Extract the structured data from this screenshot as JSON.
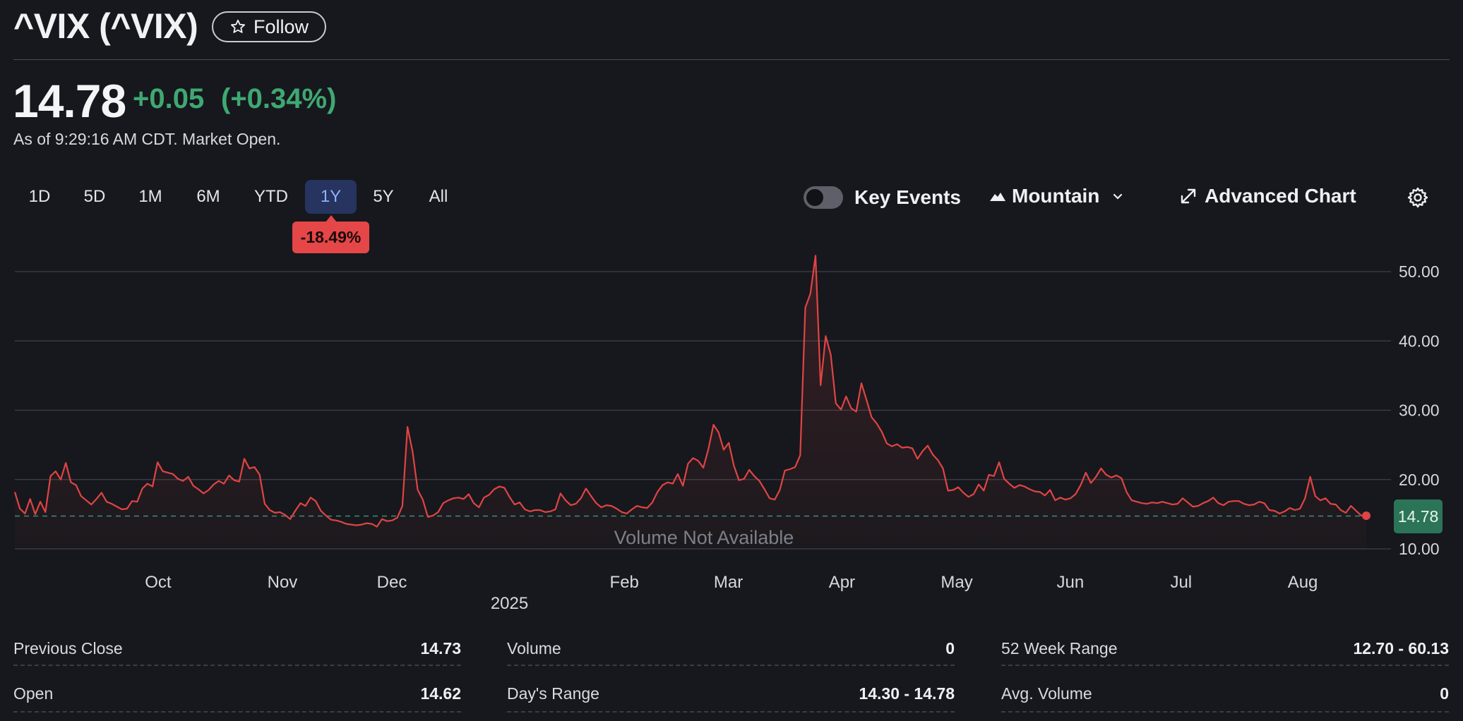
{
  "header": {
    "title": "^VIX (^VIX)",
    "follow_label": "Follow",
    "price": "14.78",
    "change": "+0.05",
    "change_pct": "(+0.34%)",
    "as_of": "As of 9:29:16 AM CDT. Market Open."
  },
  "ranges": [
    "1D",
    "5D",
    "1M",
    "6M",
    "YTD",
    "1Y",
    "5Y",
    "All"
  ],
  "active_range": "1Y",
  "range_change_badge": "-18.49%",
  "controls": {
    "key_events_label": "Key Events",
    "key_events_on": false,
    "chart_type_label": "Mountain",
    "advanced_chart_label": "Advanced Chart"
  },
  "colors": {
    "line": "#e04444",
    "positive": "#3fa872",
    "negative": "#e54647",
    "active_tab": "#26345f"
  },
  "chart_data": {
    "type": "area",
    "series_name": "^VIX",
    "ylim": [
      10,
      52
    ],
    "yticks": [
      "50.00",
      "40.00",
      "30.00",
      "20.00",
      "10.00"
    ],
    "ytick_values": [
      50,
      40,
      30,
      20,
      10
    ],
    "xtick_labels": [
      "Oct",
      "Nov",
      "Dec",
      "Feb",
      "Mar",
      "Apr",
      "May",
      "Jun",
      "Jul",
      "Aug"
    ],
    "xtick_positions": [
      0.106,
      0.198,
      0.279,
      0.451,
      0.528,
      0.612,
      0.697,
      0.781,
      0.863,
      0.953
    ],
    "year_label": "2025",
    "year_position": 0.366,
    "volume_note": "Volume Not Available",
    "previous_close": 14.73,
    "last_value_label": "14.78",
    "values": [
      18.2,
      15.8,
      15.1,
      17.2,
      15.0,
      16.8,
      15.3,
      20.5,
      21.2,
      20.0,
      22.4,
      19.6,
      19.2,
      17.6,
      17.0,
      16.4,
      17.2,
      18.1,
      16.8,
      16.5,
      16.1,
      15.7,
      15.8,
      16.9,
      16.8,
      18.7,
      19.4,
      19.0,
      22.5,
      21.2,
      21.0,
      20.8,
      20.1,
      19.8,
      20.4,
      19.1,
      18.6,
      18.0,
      18.5,
      19.3,
      19.8,
      19.4,
      20.6,
      19.9,
      19.7,
      23.0,
      21.6,
      21.8,
      20.7,
      16.5,
      15.6,
      15.2,
      15.3,
      14.9,
      14.3,
      15.5,
      16.6,
      16.2,
      17.4,
      16.9,
      15.5,
      14.8,
      14.2,
      14.1,
      13.9,
      13.6,
      13.5,
      13.4,
      13.5,
      13.7,
      13.6,
      13.2,
      14.3,
      14.0,
      14.1,
      14.5,
      16.2,
      27.6,
      24.0,
      18.5,
      17.1,
      14.6,
      14.8,
      15.3,
      16.6,
      17.0,
      17.3,
      17.4,
      17.2,
      17.9,
      16.6,
      16.0,
      17.4,
      17.8,
      18.6,
      19.0,
      18.8,
      17.5,
      16.4,
      16.7,
      15.7,
      15.4,
      15.6,
      15.6,
      15.3,
      15.4,
      15.7,
      18.0,
      17.0,
      16.3,
      16.5,
      17.3,
      18.7,
      17.6,
      16.6,
      16.0,
      16.3,
      16.2,
      15.8,
      15.3,
      15.1,
      15.7,
      16.2,
      16.0,
      15.9,
      16.7,
      18.2,
      19.2,
      19.6,
      19.4,
      20.8,
      19.1,
      22.3,
      23.1,
      22.7,
      21.7,
      24.4,
      27.9,
      26.8,
      24.3,
      25.3,
      22.0,
      19.9,
      20.1,
      21.4,
      20.5,
      19.8,
      18.6,
      17.3,
      17.1,
      18.5,
      21.3,
      21.5,
      21.8,
      23.5,
      44.8,
      46.8,
      52.3,
      33.6,
      40.7,
      38.0,
      31.0,
      30.1,
      32.0,
      30.3,
      29.8,
      33.9,
      31.5,
      29.0,
      28.1,
      26.9,
      25.2,
      24.8,
      25.1,
      24.6,
      24.7,
      24.5,
      23.0,
      24.1,
      24.9,
      23.6,
      22.8,
      21.6,
      18.4,
      18.5,
      18.9,
      18.1,
      17.5,
      17.9,
      19.3,
      18.4,
      20.7,
      20.5,
      22.5,
      20.1,
      19.4,
      18.8,
      19.2,
      19.0,
      18.6,
      18.3,
      18.2,
      17.7,
      18.5,
      17.0,
      17.4,
      17.1,
      17.3,
      17.9,
      19.2,
      21.0,
      19.5,
      20.4,
      21.6,
      20.7,
      20.3,
      20.6,
      20.2,
      18.2,
      17.0,
      16.8,
      16.6,
      16.5,
      16.7,
      16.6,
      16.8,
      16.6,
      16.4,
      16.5,
      17.3,
      16.7,
      16.1,
      16.2,
      16.6,
      16.9,
      17.4,
      16.6,
      16.3,
      16.8,
      16.9,
      16.9,
      16.5,
      16.3,
      16.4,
      16.8,
      16.6,
      15.6,
      15.5,
      15.1,
      15.4,
      15.9,
      15.6,
      15.8,
      17.3,
      20.4,
      17.6,
      17.0,
      17.3,
      16.5,
      16.4,
      15.6,
      15.2,
      16.2,
      15.5,
      14.8,
      14.78
    ]
  },
  "stats": [
    [
      {
        "label": "Previous Close",
        "value": "14.73"
      },
      {
        "label": "Open",
        "value": "14.62"
      }
    ],
    [
      {
        "label": "Volume",
        "value": "0"
      },
      {
        "label": "Day's Range",
        "value": "14.30 - 14.78"
      }
    ],
    [
      {
        "label": "52 Week Range",
        "value": "12.70 - 60.13"
      },
      {
        "label": "Avg. Volume",
        "value": "0"
      }
    ]
  ]
}
